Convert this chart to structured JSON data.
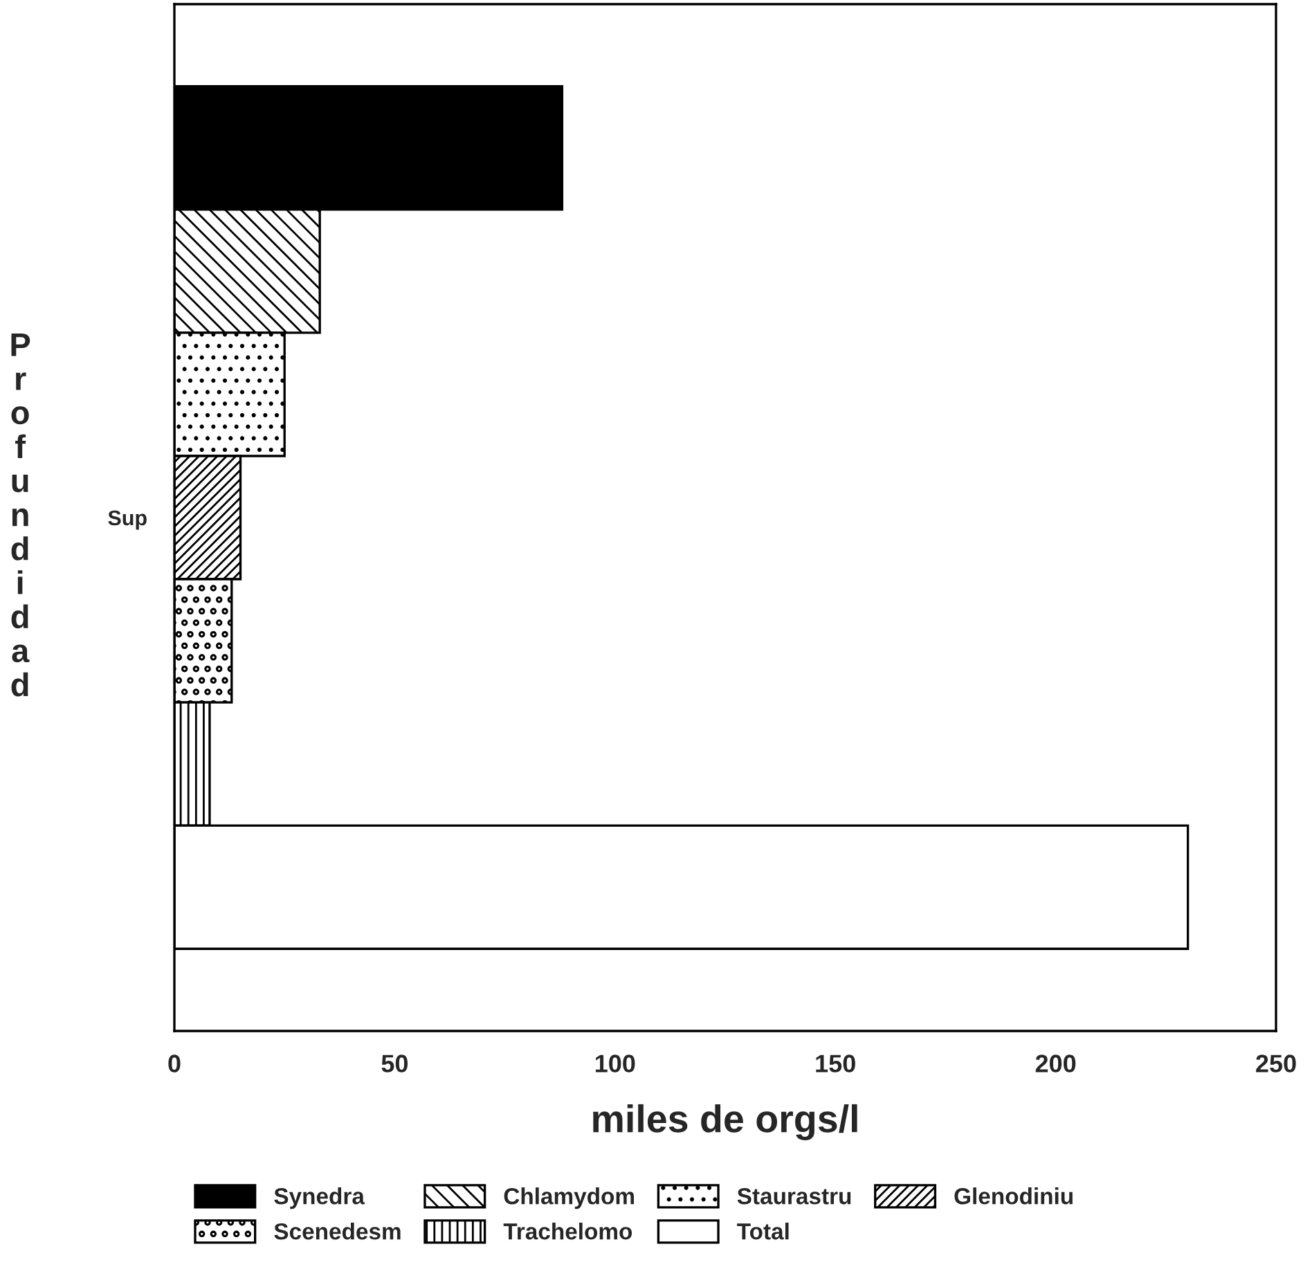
{
  "chart_data": {
    "type": "bar",
    "orientation": "horizontal",
    "xlabel": "miles de orgs/l",
    "ylabel": "Profundidad",
    "categories": [
      "Sup"
    ],
    "series": [
      {
        "name": "Synedra",
        "color": "#000000",
        "values": [
          88
        ]
      },
      {
        "name": "Chlamydom",
        "color": "#000000",
        "values": [
          33
        ]
      },
      {
        "name": "Staurastru",
        "color": "#000000",
        "values": [
          25
        ]
      },
      {
        "name": "Glenodiniu",
        "color": "#000000",
        "values": [
          15
        ]
      },
      {
        "name": "Scenedesm",
        "color": "#000000",
        "values": [
          13
        ]
      },
      {
        "name": "Trachelomo",
        "color": "#000000",
        "values": [
          8
        ]
      },
      {
        "name": "Total",
        "color": "#ffffff",
        "values": [
          230
        ]
      }
    ],
    "xlim": [
      0,
      250
    ],
    "xticks": [
      0,
      50,
      100,
      150,
      200,
      250
    ],
    "grid": false,
    "legend": "bottom"
  }
}
